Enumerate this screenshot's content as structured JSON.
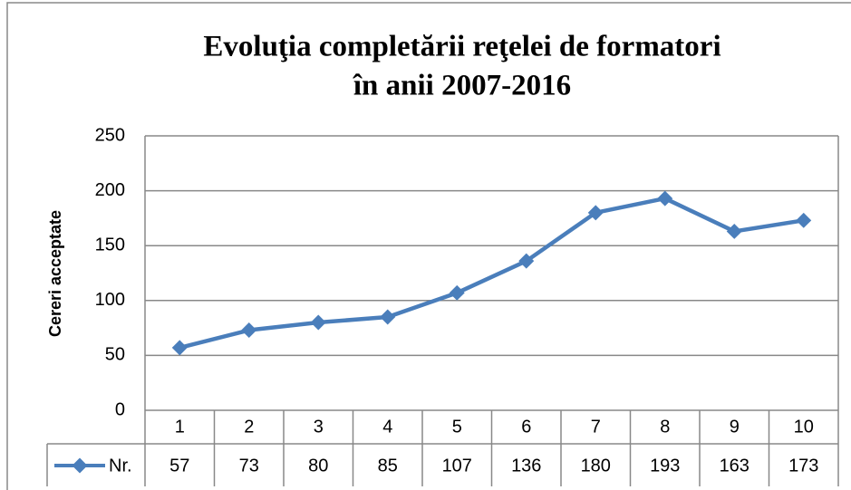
{
  "chart_data": {
    "type": "line",
    "title": [
      "Evoluţia completării reţelei de formatori",
      "în anii 2007-2016"
    ],
    "ylabel": "Cereri acceptate",
    "categories": [
      "1",
      "2",
      "3",
      "4",
      "5",
      "6",
      "7",
      "8",
      "9",
      "10"
    ],
    "series": [
      {
        "name": "Nr.",
        "color": "#4a7ebb",
        "values": [
          57,
          73,
          80,
          85,
          107,
          136,
          180,
          193,
          163,
          173
        ]
      }
    ],
    "ylim": [
      0,
      250
    ],
    "yticks": [
      0,
      50,
      100,
      150,
      200,
      250
    ],
    "grid": true
  }
}
